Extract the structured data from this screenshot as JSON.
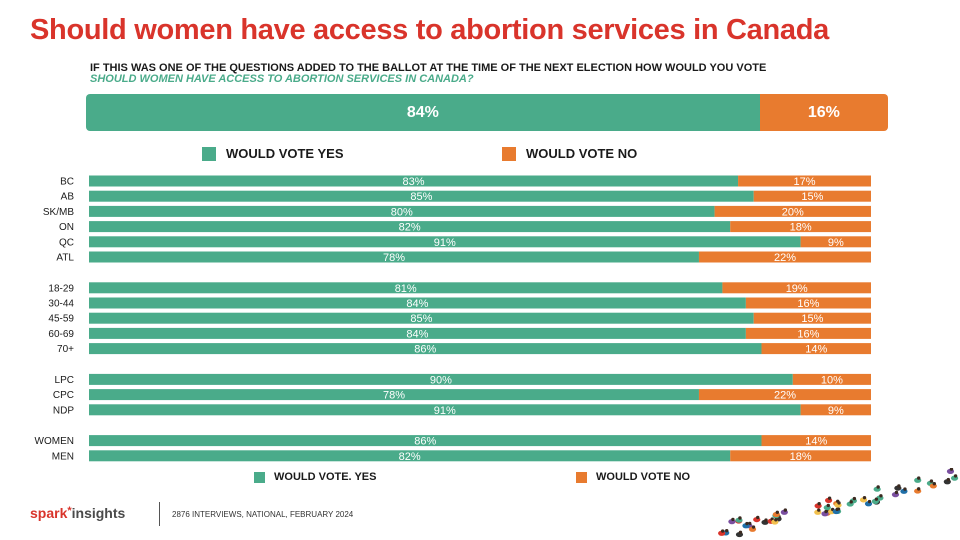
{
  "title": "Should women have access to abortion services in Canada",
  "question_line1": "IF THIS WAS ONE OF THE QUESTIONS ADDED TO THE BALLOT AT THE TIME OF THE NEXT ELECTION HOW WOULD YOU VOTE",
  "question_line2": "SHOULD WOMEN HAVE ACCESS TO ABORTION SERVICES IN CANADA?",
  "overall": {
    "yes": 84,
    "no": 16,
    "yes_label": "84%",
    "no_label": "16%"
  },
  "legend_top": {
    "yes": "WOULD VOTE YES",
    "no": "WOULD VOTE NO"
  },
  "legend_bottom": {
    "yes": "WOULD VOTE. YES",
    "no": "WOULD VOTE NO"
  },
  "colors": {
    "yes": "#4aab8a",
    "no": "#e87b2f",
    "title": "#d9342b"
  },
  "footer": {
    "brand_a": "spark",
    "brand_b": "insights",
    "note": "2876 INTERVIEWS, NATIONAL, FEBRUARY 2024"
  },
  "chart_data": {
    "type": "bar",
    "orientation": "horizontal-stacked-100",
    "groups": [
      {
        "rows": [
          {
            "label": "BC",
            "yes": 83,
            "no": 17
          },
          {
            "label": "AB",
            "yes": 85,
            "no": 15
          },
          {
            "label": "SK/MB",
            "yes": 80,
            "no": 20
          },
          {
            "label": "ON",
            "yes": 82,
            "no": 18
          },
          {
            "label": "QC",
            "yes": 91,
            "no": 9
          },
          {
            "label": "ATL",
            "yes": 78,
            "no": 22
          }
        ]
      },
      {
        "rows": [
          {
            "label": "18-29",
            "yes": 81,
            "no": 19
          },
          {
            "label": "30-44",
            "yes": 84,
            "no": 16
          },
          {
            "label": "45-59",
            "yes": 85,
            "no": 15
          },
          {
            "label": "60-69",
            "yes": 84,
            "no": 16
          },
          {
            "label": "70+",
            "yes": 86,
            "no": 14
          }
        ]
      },
      {
        "rows": [
          {
            "label": "LPC",
            "yes": 90,
            "no": 10
          },
          {
            "label": "CPC",
            "yes": 78,
            "no": 22
          },
          {
            "label": "NDP",
            "yes": 91,
            "no": 9
          }
        ]
      },
      {
        "rows": [
          {
            "label": "WOMEN",
            "yes": 86,
            "no": 14
          },
          {
            "label": "MEN",
            "yes": 82,
            "no": 18
          }
        ]
      }
    ],
    "series": [
      {
        "name": "WOULD VOTE YES"
      },
      {
        "name": "WOULD VOTE NO"
      }
    ],
    "xlim": [
      0,
      100
    ],
    "value_suffix": "%"
  }
}
